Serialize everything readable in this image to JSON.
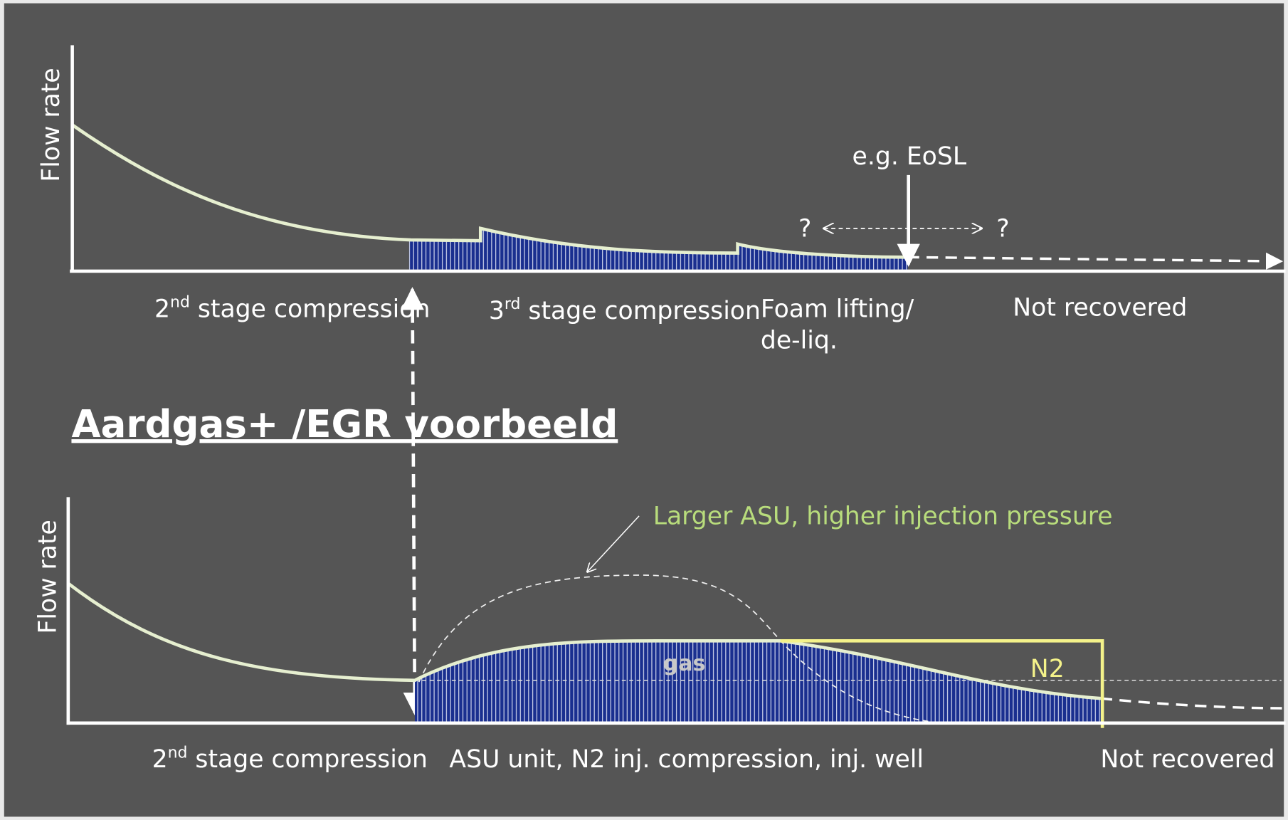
{
  "top": {
    "y_axis_label": "Flow rate",
    "annotation": "e.g. EoSL",
    "question_left": "?",
    "question_right": "?",
    "stages": [
      {
        "number": "2",
        "suffix": "nd",
        "text": " stage compression"
      },
      {
        "number": "3",
        "suffix": "rd",
        "text": " stage compression"
      },
      {
        "lines": [
          "Foam lifting/",
          "de-liq."
        ]
      },
      {
        "text": "Not recovered"
      }
    ]
  },
  "title": "Aardgas+ /EGR voorbeeld",
  "bottom": {
    "y_axis_label": "Flow rate",
    "annotation": "Larger ASU, higher injection pressure",
    "area_label": "gas",
    "box_label": "N2",
    "stages": [
      {
        "number": "2",
        "suffix": "nd",
        "text": " stage compression"
      },
      {
        "text": "ASU unit, N2 inj. compression, inj. well"
      },
      {
        "text": "Not recovered"
      }
    ]
  }
}
